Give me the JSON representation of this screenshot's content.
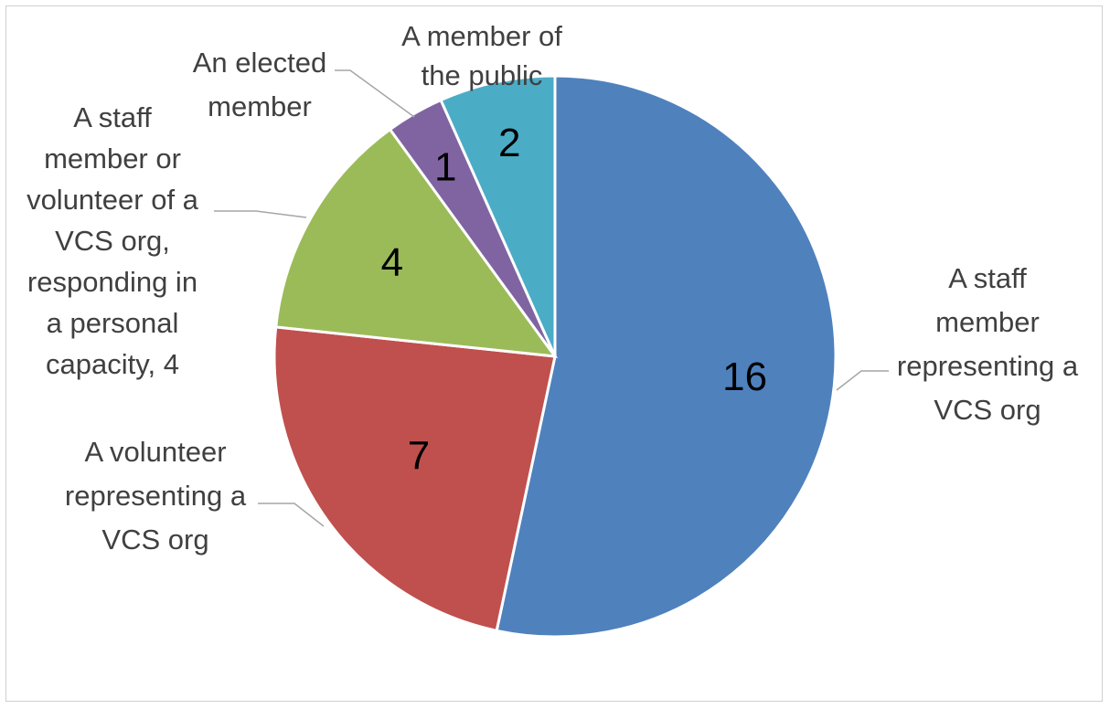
{
  "chart_data": {
    "type": "pie",
    "title": "",
    "start_angle_deg": 0,
    "direction": "clockwise",
    "legend": "none",
    "slices": [
      {
        "label_lines": [
          "A staff",
          "member",
          "representing a",
          "VCS org"
        ],
        "value": 16,
        "value_label": "16",
        "color": "#4F81BD"
      },
      {
        "label_lines": [
          "A volunteer",
          "representing a",
          "VCS org"
        ],
        "value": 7,
        "value_label": "7",
        "color": "#C0504D"
      },
      {
        "label_lines": [
          "A staff",
          "member or",
          "volunteer of a",
          "VCS org,",
          "responding in",
          "a personal",
          "capacity, 4"
        ],
        "value": 4,
        "value_label": "4",
        "color": "#9BBB59"
      },
      {
        "label_lines": [
          "An elected",
          "member"
        ],
        "value": 1,
        "value_label": "1",
        "color": "#8064A2"
      },
      {
        "label_lines": [
          "A member of",
          "the public"
        ],
        "value": 2,
        "value_label": "2",
        "color": "#4BACC6"
      }
    ]
  }
}
